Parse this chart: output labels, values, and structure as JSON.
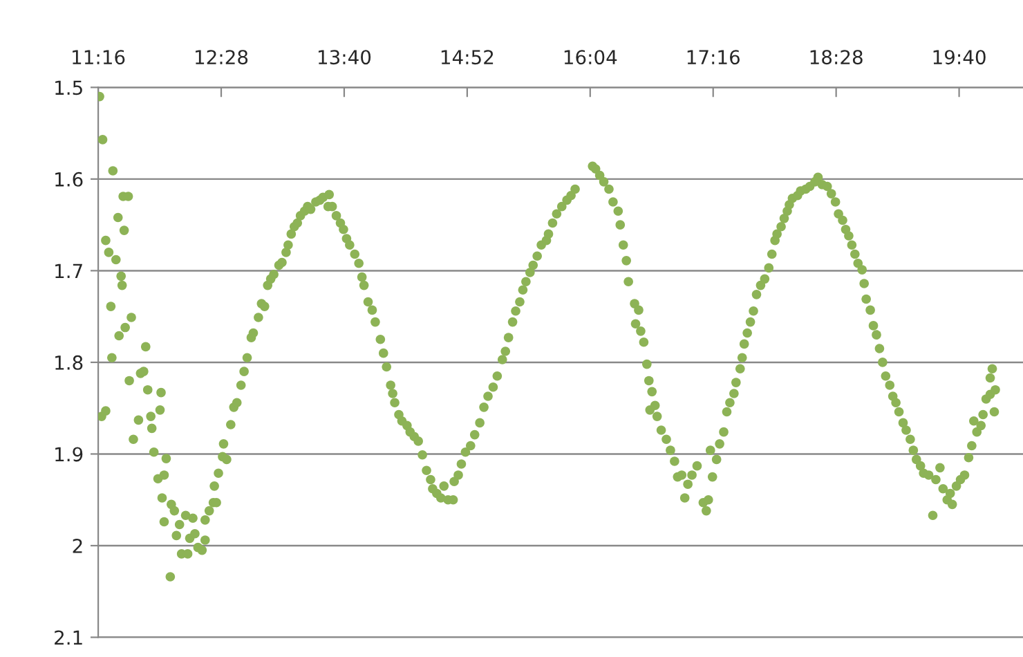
{
  "chart_data": {
    "type": "scatter",
    "marker": "circle",
    "grid": "y",
    "xlim": [
      11.2667,
      20.29
    ],
    "ylim": [
      2.1,
      1.5
    ],
    "xticks": [
      {
        "value": 11.2667,
        "label": "11:16"
      },
      {
        "value": 12.4667,
        "label": "12:28"
      },
      {
        "value": 13.6667,
        "label": "13:40"
      },
      {
        "value": 14.8667,
        "label": "14:52"
      },
      {
        "value": 16.0667,
        "label": "16:04"
      },
      {
        "value": 17.2667,
        "label": "17:16"
      },
      {
        "value": 18.4667,
        "label": "18:28"
      },
      {
        "value": 19.6667,
        "label": "19:40"
      }
    ],
    "yticks": [
      1.5,
      1.6,
      1.7,
      1.8,
      1.9,
      {
        "value": 2.0,
        "label": "2"
      },
      2.1
    ],
    "series": [
      {
        "color": "#8db356",
        "x": [
          11.28,
          11.31,
          11.3,
          11.34,
          11.41,
          11.34,
          11.37,
          11.44,
          11.49,
          11.5,
          11.39,
          11.4,
          11.47,
          11.46,
          11.51,
          11.56,
          11.52,
          11.53,
          11.59,
          11.57,
          11.61,
          11.66,
          11.68,
          11.73,
          11.71,
          11.75,
          11.78,
          11.79,
          11.81,
          11.85,
          11.87,
          11.88,
          11.89,
          11.91,
          11.93,
          11.91,
          11.97,
          11.98,
          12.01,
          12.03,
          12.06,
          12.08,
          12.12,
          12.14,
          12.16,
          12.19,
          12.21,
          12.24,
          12.28,
          12.31,
          12.31,
          12.35,
          12.39,
          12.42,
          12.4,
          12.44,
          12.48,
          12.52,
          12.49,
          12.56,
          12.59,
          12.62,
          12.66,
          12.69,
          12.72,
          12.76,
          12.78,
          12.83,
          12.86,
          12.89,
          12.92,
          12.95,
          12.98,
          13.03,
          13.06,
          13.1,
          13.12,
          13.15,
          13.18,
          13.21,
          13.24,
          13.28,
          13.31,
          13.34,
          13.39,
          13.43,
          13.46,
          13.52,
          13.51,
          13.55,
          13.59,
          13.63,
          13.66,
          13.69,
          13.72,
          13.77,
          13.81,
          13.84,
          13.86,
          13.9,
          13.94,
          13.97,
          14.02,
          14.05,
          14.08,
          14.12,
          14.14,
          14.16,
          14.2,
          14.23,
          14.28,
          14.31,
          14.35,
          14.39,
          14.43,
          14.47,
          14.51,
          14.53,
          14.57,
          14.61,
          14.64,
          14.68,
          14.73,
          14.74,
          14.78,
          14.81,
          14.85,
          14.9,
          14.94,
          14.99,
          15.03,
          15.07,
          15.12,
          15.16,
          15.21,
          15.24,
          15.27,
          15.31,
          15.34,
          15.38,
          15.41,
          15.44,
          15.48,
          15.51,
          15.55,
          15.59,
          15.64,
          15.66,
          15.7,
          15.74,
          15.79,
          15.84,
          15.88,
          15.92,
          16.09,
          16.12,
          16.16,
          16.2,
          16.25,
          16.29,
          16.34,
          16.36,
          16.39,
          16.42,
          16.44,
          16.5,
          16.54,
          16.51,
          16.56,
          16.59,
          16.62,
          16.64,
          16.67,
          16.65,
          16.7,
          16.72,
          16.76,
          16.81,
          16.85,
          16.89,
          16.92,
          16.96,
          16.99,
          17.02,
          17.06,
          17.11,
          17.17,
          17.2,
          17.22,
          17.26,
          17.24,
          17.3,
          17.33,
          17.37,
          17.4,
          17.43,
          17.47,
          17.49,
          17.53,
          17.55,
          17.57,
          17.6,
          17.63,
          17.66,
          17.69,
          17.73,
          17.77,
          17.81,
          17.84,
          17.87,
          17.89,
          17.93,
          17.96,
          17.99,
          18.01,
          18.04,
          18.09,
          18.12,
          18.17,
          18.21,
          18.26,
          18.29,
          18.33,
          18.38,
          18.42,
          18.46,
          18.49,
          18.53,
          18.56,
          18.59,
          18.62,
          18.65,
          18.68,
          18.72,
          18.74,
          18.76,
          18.8,
          18.83,
          18.86,
          18.89,
          18.92,
          18.95,
          18.99,
          19.02,
          19.05,
          19.08,
          19.12,
          19.15,
          19.19,
          19.22,
          19.25,
          19.29,
          19.32,
          19.37,
          19.41,
          19.44,
          19.48,
          19.51,
          19.55,
          19.58,
          19.6,
          19.64,
          19.68,
          19.72,
          19.76,
          19.79,
          19.81,
          19.84,
          19.88,
          19.9,
          19.93,
          19.97,
          20.01,
          20.02,
          19.99,
          19.97
        ],
        "values": [
          1.51,
          1.557,
          1.859,
          1.853,
          1.591,
          1.667,
          1.68,
          1.688,
          1.706,
          1.716,
          1.739,
          1.795,
          1.771,
          1.642,
          1.619,
          1.619,
          1.656,
          1.762,
          1.751,
          1.82,
          1.884,
          1.863,
          1.812,
          1.783,
          1.81,
          1.83,
          1.859,
          1.872,
          1.898,
          1.927,
          1.852,
          1.833,
          1.948,
          1.974,
          1.905,
          1.923,
          2.034,
          1.955,
          1.962,
          1.989,
          1.977,
          2.009,
          1.967,
          2.009,
          1.992,
          1.97,
          1.987,
          2.002,
          2.005,
          1.994,
          1.972,
          1.962,
          1.953,
          1.953,
          1.935,
          1.921,
          1.903,
          1.906,
          1.889,
          1.868,
          1.849,
          1.844,
          1.825,
          1.81,
          1.795,
          1.773,
          1.768,
          1.751,
          1.736,
          1.739,
          1.716,
          1.709,
          1.704,
          1.694,
          1.691,
          1.68,
          1.672,
          1.66,
          1.652,
          1.648,
          1.64,
          1.635,
          1.63,
          1.633,
          1.625,
          1.623,
          1.62,
          1.617,
          1.63,
          1.63,
          1.64,
          1.648,
          1.655,
          1.665,
          1.672,
          1.682,
          1.692,
          1.707,
          1.716,
          1.734,
          1.743,
          1.756,
          1.775,
          1.79,
          1.805,
          1.825,
          1.834,
          1.844,
          1.857,
          1.864,
          1.869,
          1.876,
          1.881,
          1.886,
          1.901,
          1.918,
          1.928,
          1.938,
          1.943,
          1.948,
          1.935,
          1.95,
          1.95,
          1.93,
          1.923,
          1.911,
          1.898,
          1.891,
          1.879,
          1.866,
          1.849,
          1.837,
          1.827,
          1.815,
          1.797,
          1.788,
          1.773,
          1.756,
          1.744,
          1.734,
          1.721,
          1.712,
          1.702,
          1.694,
          1.684,
          1.672,
          1.667,
          1.66,
          1.648,
          1.638,
          1.63,
          1.623,
          1.618,
          1.611,
          1.586,
          1.589,
          1.596,
          1.603,
          1.611,
          1.625,
          1.635,
          1.65,
          1.672,
          1.689,
          1.712,
          1.736,
          1.743,
          1.758,
          1.766,
          1.778,
          1.802,
          1.82,
          1.832,
          1.852,
          1.847,
          1.859,
          1.874,
          1.884,
          1.896,
          1.908,
          1.925,
          1.923,
          1.948,
          1.933,
          1.923,
          1.913,
          1.953,
          1.962,
          1.95,
          1.925,
          1.896,
          1.906,
          1.889,
          1.876,
          1.854,
          1.844,
          1.834,
          1.822,
          1.807,
          1.795,
          1.78,
          1.768,
          1.756,
          1.744,
          1.726,
          1.716,
          1.709,
          1.697,
          1.682,
          1.667,
          1.66,
          1.652,
          1.643,
          1.635,
          1.628,
          1.621,
          1.618,
          1.613,
          1.611,
          1.608,
          1.603,
          1.598,
          1.606,
          1.608,
          1.616,
          1.625,
          1.638,
          1.645,
          1.655,
          1.662,
          1.672,
          1.682,
          1.692,
          1.699,
          1.714,
          1.731,
          1.743,
          1.76,
          1.77,
          1.785,
          1.8,
          1.815,
          1.825,
          1.837,
          1.844,
          1.854,
          1.866,
          1.874,
          1.884,
          1.896,
          1.906,
          1.913,
          1.921,
          1.923,
          1.967,
          1.928,
          1.915,
          1.938,
          1.95,
          1.943,
          1.955,
          1.935,
          1.928,
          1.923,
          1.904,
          1.891,
          1.864,
          1.876,
          1.869,
          1.857,
          1.84,
          1.835,
          1.854,
          1.83,
          1.807,
          1.817
        ]
      }
    ]
  }
}
